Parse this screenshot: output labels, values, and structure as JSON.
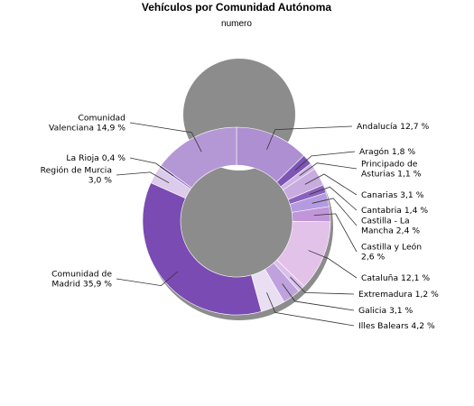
{
  "chart_data": {
    "type": "pie",
    "variant": "donut",
    "title": "Vehículos por Comunidad Autónoma",
    "subtitle": "numero",
    "unit": "%",
    "slices": [
      {
        "name": "Andalucía",
        "value": 12.7,
        "label": [
          "Andalucía 12,7 %"
        ],
        "color": "#ad8fd2"
      },
      {
        "name": "Aragón",
        "value": 1.8,
        "label": [
          "Aragón 1,8 %"
        ],
        "color": "#7d55b5"
      },
      {
        "name": "Principado de Asturias",
        "value": 1.1,
        "label": [
          "Principado de",
          "Asturias 1,1 %"
        ],
        "color": "#cdb4e4"
      },
      {
        "name": "Canarias",
        "value": 3.1,
        "label": [
          "Canarias 3,1 %"
        ],
        "color": "#c8acdf"
      },
      {
        "name": "Cantabria",
        "value": 1.4,
        "label": [
          "Cantabria 1,4 %"
        ],
        "color": "#8a62bd"
      },
      {
        "name": "Castilla - La Mancha",
        "value": 2.4,
        "label": [
          "Castilla - La",
          "Mancha 2,4 %"
        ],
        "color": "#b49be0"
      },
      {
        "name": "Castilla y León",
        "value": 2.6,
        "label": [
          "Castilla y León",
          "2,6 %"
        ],
        "color": "#c196d9"
      },
      {
        "name": "Cataluña",
        "value": 12.1,
        "label": [
          "Cataluña 12,1 %"
        ],
        "color": "#e3c2ea"
      },
      {
        "name": "Extremadura",
        "value": 1.2,
        "label": [
          "Extremadura 1,2 %"
        ],
        "color": "#d9bfe9"
      },
      {
        "name": "Galicia",
        "value": 3.1,
        "label": [
          "Galicia 3,1 %"
        ],
        "color": "#bfa2dd"
      },
      {
        "name": "Illes Balears",
        "value": 4.2,
        "label": [
          "Illes Balears 4,2 %"
        ],
        "color": "#eadff2"
      },
      {
        "name": "Comunidad de Madrid",
        "value": 35.9,
        "label": [
          "Comunidad de",
          "Madrid 35,9 %"
        ],
        "color": "#7a4bb2"
      },
      {
        "name": "Región de Murcia",
        "value": 3.0,
        "label": [
          "Región de Murcia",
          "3,0 %"
        ],
        "color": "#dccbea"
      },
      {
        "name": "La Rioja",
        "value": 0.4,
        "label": [
          "La Rioja 0,4 %"
        ],
        "color": "#8c67c0"
      },
      {
        "name": "Comunidad Valenciana",
        "value": 14.9,
        "label": [
          "Comunidad",
          "Valenciana 14,9 %"
        ],
        "color": "#b498d6"
      }
    ],
    "shadow_color": "#8c8c8c"
  }
}
